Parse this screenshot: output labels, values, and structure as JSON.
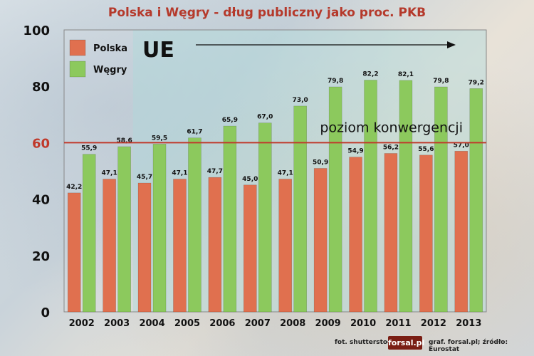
{
  "chart_data": {
    "type": "bar",
    "title": "Polska i Węgry - dług publiczny jako proc. PKB",
    "categories": [
      "2002",
      "2003",
      "2004",
      "2005",
      "2006",
      "2007",
      "2008",
      "2009",
      "2010",
      "2011",
      "2012",
      "2013"
    ],
    "series": [
      {
        "name": "Polska",
        "color": "#e0704f",
        "values": [
          42.2,
          47.1,
          45.7,
          47.1,
          47.7,
          45.0,
          47.1,
          50.9,
          54.9,
          56.2,
          55.6,
          57.0
        ],
        "labels": [
          "42,2",
          "47,1",
          "45,7",
          "47,1",
          "47,7",
          "45,0",
          "47,1",
          "50,9",
          "54,9",
          "56,2",
          "55,6",
          "57,0"
        ]
      },
      {
        "name": "Węgry",
        "color": "#8cc95d",
        "values": [
          55.9,
          58.6,
          59.5,
          61.7,
          65.9,
          67.0,
          73.0,
          79.8,
          82.2,
          82.1,
          79.8,
          79.2
        ],
        "labels": [
          "55,9",
          "58,6",
          "59,5",
          "61,7",
          "65,9",
          "67,0",
          "73,0",
          "79,8",
          "82,2",
          "82,1",
          "79,8",
          "79,2"
        ]
      }
    ],
    "yticks": [
      "0",
      "20",
      "40",
      "60",
      "80",
      "100"
    ],
    "ylim": [
      0,
      100
    ],
    "reference_line": {
      "value": 60,
      "label": "poziom konwergencji",
      "color": "#c0392b"
    },
    "annotation": {
      "label": "UE",
      "from_year": "2004"
    },
    "legend_position": "top-left",
    "grid": false
  },
  "footer": {
    "photo_credit": "fot. shutterstock",
    "logo": "forsal.pl",
    "source": "graf. forsal.pl;  źródło: Eurostat"
  }
}
